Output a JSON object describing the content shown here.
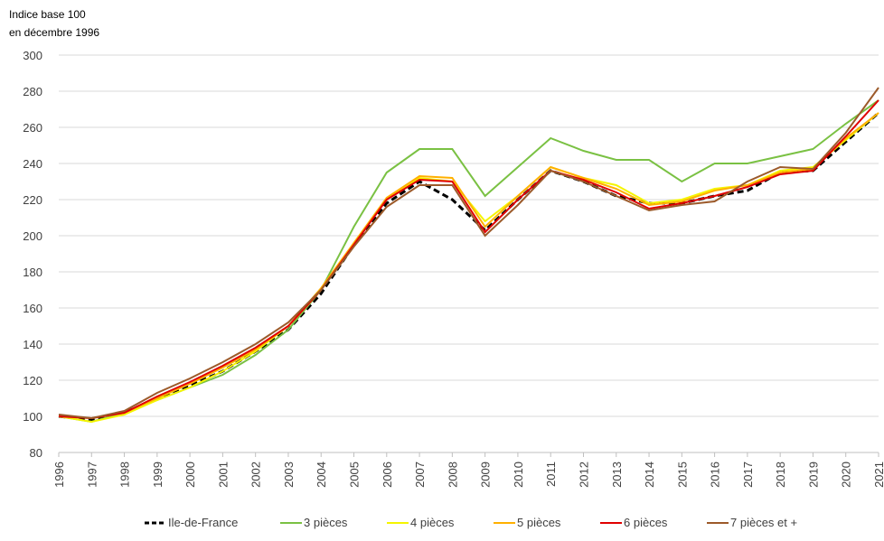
{
  "chart_data": {
    "type": "line",
    "y_axis_label": [
      "Indice base 100",
      "en décembre 1996"
    ],
    "x": [
      1996,
      1997,
      1998,
      1999,
      2000,
      2001,
      2002,
      2003,
      2004,
      2005,
      2006,
      2007,
      2008,
      2009,
      2010,
      2011,
      2012,
      2013,
      2014,
      2015,
      2016,
      2017,
      2018,
      2019,
      2020,
      2021
    ],
    "series": [
      {
        "name": "Ile-de-France",
        "color": "#000000",
        "dashed": true,
        "values": [
          100,
          98,
          102,
          110,
          117,
          125,
          136,
          148,
          168,
          195,
          218,
          230,
          220,
          203,
          220,
          236,
          230,
          222,
          218,
          218,
          222,
          225,
          235,
          236,
          252,
          268
        ]
      },
      {
        "name": "3 pièces",
        "color": "#7ac143",
        "values": [
          100,
          97,
          102,
          109,
          116,
          123,
          134,
          148,
          170,
          205,
          235,
          248,
          248,
          222,
          238,
          254,
          247,
          242,
          242,
          230,
          240,
          240,
          244,
          248,
          262,
          275
        ]
      },
      {
        "name": "4 pièces",
        "color": "#f5f500",
        "values": [
          100,
          97,
          101,
          109,
          116,
          125,
          136,
          150,
          170,
          196,
          220,
          232,
          230,
          208,
          222,
          238,
          232,
          228,
          218,
          220,
          226,
          228,
          236,
          238,
          253,
          268
        ]
      },
      {
        "name": "5 pièces",
        "color": "#ffb000",
        "values": [
          100,
          99,
          102,
          110,
          118,
          127,
          137,
          150,
          171,
          196,
          221,
          233,
          232,
          205,
          222,
          238,
          232,
          226,
          217,
          219,
          225,
          228,
          235,
          237,
          254,
          268
        ]
      },
      {
        "name": "6 pièces",
        "color": "#e00000",
        "values": [
          100,
          99,
          102,
          111,
          119,
          128,
          138,
          150,
          170,
          195,
          220,
          231,
          230,
          202,
          220,
          236,
          231,
          224,
          215,
          218,
          222,
          227,
          234,
          236,
          255,
          275
        ]
      },
      {
        "name": "7 pièces et +",
        "color": "#9c5a2a",
        "values": [
          101,
          99,
          103,
          113,
          121,
          130,
          140,
          152,
          170,
          194,
          216,
          228,
          228,
          200,
          217,
          236,
          230,
          222,
          214,
          217,
          219,
          230,
          238,
          237,
          257,
          282
        ]
      }
    ],
    "xlim": [
      1996,
      2021
    ],
    "xticks": [
      1996,
      1997,
      1998,
      1999,
      2000,
      2001,
      2002,
      2003,
      2004,
      2005,
      2006,
      2007,
      2008,
      2009,
      2010,
      2011,
      2012,
      2013,
      2014,
      2015,
      2016,
      2017,
      2018,
      2019,
      2020,
      2021
    ],
    "ylim": [
      80,
      300
    ],
    "yticks": [
      80,
      100,
      120,
      140,
      160,
      180,
      200,
      220,
      240,
      260,
      280,
      300
    ],
    "grid": true,
    "legend": "bottom"
  }
}
